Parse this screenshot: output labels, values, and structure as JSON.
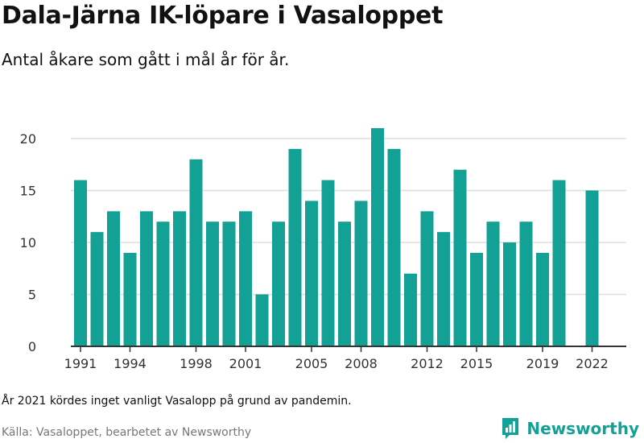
{
  "title": "Dala-Järna IK-löpare i Vasaloppet",
  "subtitle": "Antal åkare som gått i mål år för år.",
  "note": "År 2021 kördes inget vanligt Vasalopp på grund av pandemin.",
  "source": "Källa: Vasaloppet, bearbetet av Newsworthy",
  "logo_text": "Newsworthy",
  "colors": {
    "bar": "#13a196",
    "grid": "#dddddd",
    "axis": "#333333",
    "logo": "#13a196"
  },
  "chart_data": {
    "type": "bar",
    "x": [
      1991,
      1992,
      1993,
      1994,
      1995,
      1996,
      1997,
      1998,
      1999,
      2000,
      2001,
      2002,
      2003,
      2004,
      2005,
      2006,
      2007,
      2008,
      2009,
      2010,
      2011,
      2012,
      2013,
      2014,
      2015,
      2016,
      2017,
      2018,
      2019,
      2020,
      2021,
      2022
    ],
    "values": [
      16,
      11,
      13,
      9,
      13,
      12,
      13,
      18,
      12,
      12,
      13,
      5,
      12,
      19,
      14,
      16,
      12,
      14,
      21,
      19,
      7,
      13,
      11,
      17,
      9,
      12,
      10,
      12,
      9,
      16,
      null,
      15
    ],
    "x_tick_labels": [
      "1991",
      "1994",
      "1998",
      "2001",
      "2005",
      "2008",
      "2012",
      "2015",
      "2019",
      "2022"
    ],
    "y_ticks": [
      0,
      5,
      10,
      15,
      20
    ],
    "ylim": [
      0,
      22
    ],
    "grid": true
  }
}
